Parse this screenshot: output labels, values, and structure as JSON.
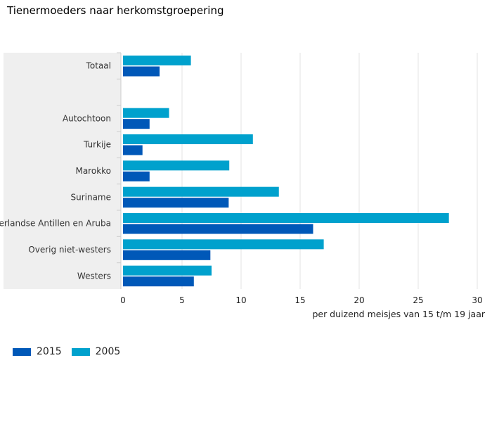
{
  "chart_data": {
    "type": "bar",
    "orientation": "horizontal",
    "title": "Tienermoeders naar herkomstgroepering",
    "xlabel": "per duizend meisjes van 15 t/m 19 jaar",
    "ylabel": "",
    "xlim": [
      0,
      30
    ],
    "xticks": [
      0,
      5,
      10,
      15,
      20,
      25,
      30
    ],
    "grid": true,
    "legend": "bottom-left",
    "categories": [
      "Totaal",
      "",
      "Autochtoon",
      "Turkije",
      "Marokko",
      "Suriname",
      "Nederlandse Antillen en Aruba",
      "Overig niet-westers",
      "Westers"
    ],
    "series": [
      {
        "name": "2005",
        "color": "#00a1cd",
        "values": [
          5.75,
          null,
          3.9,
          11.0,
          9.0,
          13.2,
          27.6,
          17.0,
          7.5
        ]
      },
      {
        "name": "2015",
        "color": "#0058b8",
        "values": [
          3.1,
          null,
          2.25,
          1.65,
          2.25,
          8.95,
          16.1,
          7.4,
          6.0
        ]
      }
    ]
  },
  "legend_items": [
    {
      "label": "2015",
      "color": "#0058b8"
    },
    {
      "label": "2005",
      "color": "#00a1cd"
    }
  ]
}
